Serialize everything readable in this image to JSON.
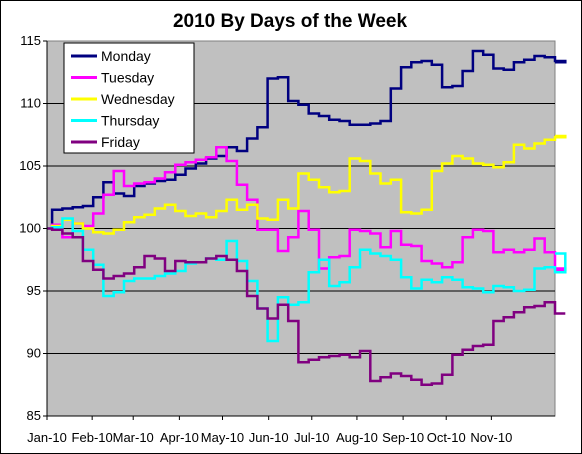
{
  "chart_data": {
    "type": "line",
    "title": "2010 By Days of the Week",
    "xlabel": "",
    "ylabel": "",
    "ylim": [
      85,
      115
    ],
    "yticks": [
      85,
      90,
      95,
      100,
      105,
      110,
      115
    ],
    "xlim": [
      0,
      49.5
    ],
    "x_ticks": [
      {
        "label": "Jan-10",
        "x": 0
      },
      {
        "label": "Feb-10",
        "x": 4.4
      },
      {
        "label": "Mar-10",
        "x": 8.4
      },
      {
        "label": "Apr-10",
        "x": 12.9
      },
      {
        "label": "May-10",
        "x": 17.1
      },
      {
        "label": "Jun-10",
        "x": 21.6
      },
      {
        "label": "Jul-10",
        "x": 25.8
      },
      {
        "label": "Aug-10",
        "x": 30.2
      },
      {
        "label": "Sep-10",
        "x": 34.7
      },
      {
        "label": "Oct-10",
        "x": 38.9
      },
      {
        "label": "Nov-10",
        "x": 43.3
      }
    ],
    "grid": true,
    "legend_position": "top-left",
    "plot_background": "#c0c0c0",
    "series": [
      {
        "name": "Monday",
        "color": "#000080",
        "values": [
          100,
          101.5,
          101.6,
          101.7,
          101.8,
          102.5,
          103.7,
          102.8,
          102.6,
          103.4,
          103.6,
          103.8,
          103.9,
          104.3,
          104.8,
          105.2,
          105.6,
          105.8,
          106.5,
          106.2,
          107.2,
          108.1,
          112.0,
          112.1,
          110.2,
          109.9,
          109.2,
          109.0,
          108.7,
          108.6,
          108.3,
          108.3,
          108.4,
          108.6,
          111.2,
          112.9,
          113.3,
          113.4,
          113.1,
          111.3,
          111.4,
          112.6,
          114.2,
          113.9,
          112.8,
          112.7,
          113.3,
          113.5,
          113.8,
          113.7,
          113.4,
          113.3
        ]
      },
      {
        "name": "Tuesday",
        "color": "#ff00ff",
        "values": [
          100,
          100.3,
          99.3,
          100.4,
          100.2,
          101.2,
          102.7,
          104.6,
          103.4,
          103.6,
          103.7,
          104.0,
          104.5,
          105.1,
          105.3,
          105.5,
          105.7,
          106.5,
          105.4,
          103.5,
          102.3,
          99.9,
          99.9,
          98.2,
          99.3,
          101.4,
          99.9,
          96.8,
          97.7,
          97.8,
          99.9,
          99.8,
          99.6,
          98.5,
          99.8,
          98.7,
          98.6,
          97.4,
          97.2,
          96.9,
          97.3,
          99.3,
          99.9,
          99.8,
          98.1,
          98.3,
          98.1,
          98.3,
          99.2,
          98.1,
          96.8,
          96.7
        ]
      },
      {
        "name": "Wednesday",
        "color": "#ffff00",
        "values": [
          100,
          100.2,
          100.7,
          100.4,
          100.0,
          99.7,
          99.6,
          99.9,
          100.5,
          100.9,
          101.1,
          101.6,
          101.9,
          101.4,
          101.0,
          101.2,
          100.9,
          101.4,
          102.3,
          101.5,
          101.9,
          100.8,
          100.7,
          102.3,
          101.6,
          104.4,
          103.9,
          103.3,
          102.9,
          103.0,
          105.6,
          105.4,
          104.4,
          103.6,
          103.9,
          101.3,
          101.2,
          101.5,
          104.6,
          105.2,
          105.8,
          105.6,
          105.2,
          105.1,
          104.9,
          105.3,
          106.7,
          106.4,
          106.8,
          107.1,
          107.3,
          107.4
        ]
      },
      {
        "name": "Thursday",
        "color": "#00ffff",
        "values": [
          100,
          100.1,
          100.8,
          99.8,
          98.3,
          97.1,
          94.6,
          94.9,
          95.8,
          96.0,
          96.0,
          96.2,
          96.4,
          96.6,
          97.2,
          97.3,
          97.6,
          97.5,
          99.0,
          97.4,
          95.8,
          93.6,
          91.0,
          94.5,
          93.9,
          94.1,
          96.5,
          97.5,
          95.4,
          95.7,
          96.9,
          98.3,
          98.0,
          97.8,
          97.5,
          96.1,
          95.2,
          95.9,
          95.7,
          96.1,
          95.9,
          95.3,
          95.2,
          94.9,
          95.4,
          95.3,
          95.0,
          95.1,
          96.8,
          96.9,
          96.5,
          98.0
        ]
      },
      {
        "name": "Friday",
        "color": "#800080",
        "values": [
          100,
          99.9,
          99.6,
          99.3,
          97.4,
          96.7,
          96.0,
          96.2,
          96.4,
          96.9,
          97.8,
          97.6,
          96.6,
          97.4,
          97.3,
          97.3,
          97.6,
          97.8,
          97.5,
          96.6,
          94.6,
          93.6,
          92.8,
          93.9,
          92.6,
          89.3,
          89.5,
          89.7,
          89.8,
          89.9,
          89.7,
          90.2,
          87.8,
          88.1,
          88.4,
          88.2,
          87.9,
          87.5,
          87.6,
          88.3,
          89.9,
          90.3,
          90.6,
          90.7,
          92.6,
          92.9,
          93.3,
          93.7,
          93.8,
          94.1,
          93.2,
          93.2
        ]
      }
    ]
  }
}
